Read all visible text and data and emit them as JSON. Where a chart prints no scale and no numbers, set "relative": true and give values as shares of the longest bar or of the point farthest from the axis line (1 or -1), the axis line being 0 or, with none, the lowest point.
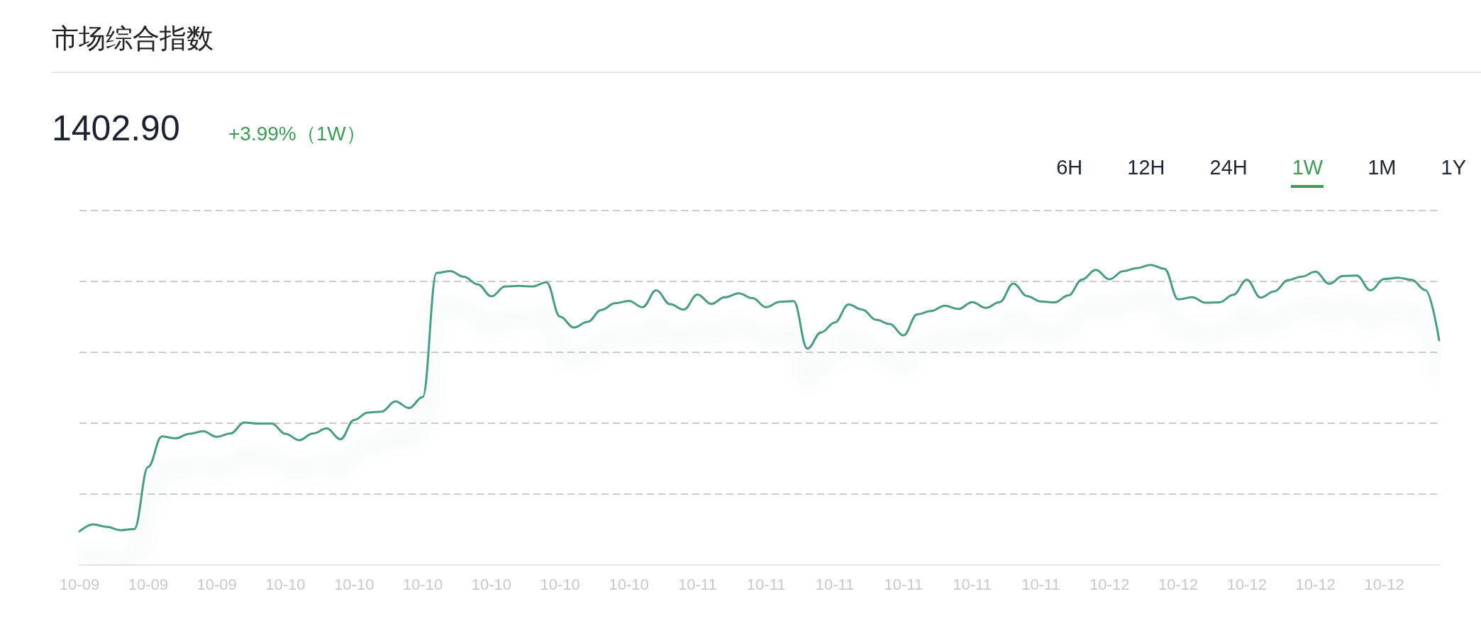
{
  "chart_data": {
    "type": "line",
    "title": "市场综合指数",
    "subtitle": "1402.90",
    "annotations": [
      "+3.99%（1W）",
      "6H",
      "12H",
      "24H",
      "1W",
      "1M",
      "1Y"
    ],
    "categories": [
      "10-09",
      null,
      null,
      null,
      null,
      "10-09",
      null,
      null,
      null,
      null,
      "10-09",
      null,
      null,
      null,
      null,
      "10-10",
      null,
      null,
      null,
      null,
      "10-10",
      null,
      null,
      null,
      null,
      "10-10",
      null,
      null,
      null,
      null,
      "10-10",
      null,
      null,
      null,
      null,
      "10-10",
      null,
      null,
      null,
      null,
      "10-10",
      null,
      null,
      null,
      null,
      "10-11",
      null,
      null,
      null,
      null,
      "10-11",
      null,
      null,
      null,
      null,
      "10-11",
      null,
      null,
      null,
      null,
      "10-11",
      null,
      null,
      null,
      null,
      "10-11",
      null,
      null,
      null,
      null,
      "10-11",
      null,
      null,
      null,
      null,
      "10-12",
      null,
      null,
      null,
      null,
      "10-12",
      null,
      null,
      null,
      null,
      "10-12",
      null,
      null,
      null,
      null,
      "10-12",
      null,
      null,
      null,
      null,
      "10-12",
      null,
      null,
      null,
      null
    ],
    "values": [
      0.112,
      0.135,
      0.127,
      0.116,
      0.12,
      0.327,
      0.428,
      0.422,
      0.437,
      0.446,
      0.427,
      0.438,
      0.475,
      0.471,
      0.471,
      0.437,
      0.416,
      0.438,
      0.455,
      0.419,
      0.483,
      0.508,
      0.511,
      0.545,
      0.523,
      0.56,
      0.973,
      0.979,
      0.96,
      0.935,
      0.895,
      0.928,
      0.93,
      0.928,
      0.942,
      0.827,
      0.791,
      0.81,
      0.85,
      0.872,
      0.88,
      0.859,
      0.915,
      0.869,
      0.851,
      0.901,
      0.87,
      0.892,
      0.905,
      0.889,
      0.859,
      0.877,
      0.879,
      0.721,
      0.775,
      0.808,
      0.868,
      0.851,
      0.817,
      0.803,
      0.765,
      0.835,
      0.846,
      0.864,
      0.853,
      0.876,
      0.857,
      0.876,
      0.938,
      0.896,
      0.878,
      0.875,
      0.898,
      0.951,
      0.983,
      0.952,
      0.979,
      0.989,
      1,
      0.987,
      0.885,
      0.892,
      0.874,
      0.875,
      0.9,
      0.95,
      0.891,
      0.912,
      0.949,
      0.961,
      0.977,
      0.937,
      0.963,
      0.964,
      0.915,
      0.953,
      0.957,
      0.95,
      0.916,
      0.749
    ],
    "color": "#4c9c84",
    "relative": true,
    "grid": "y",
    "marker": "none",
    "line_style": "solid"
  }
}
